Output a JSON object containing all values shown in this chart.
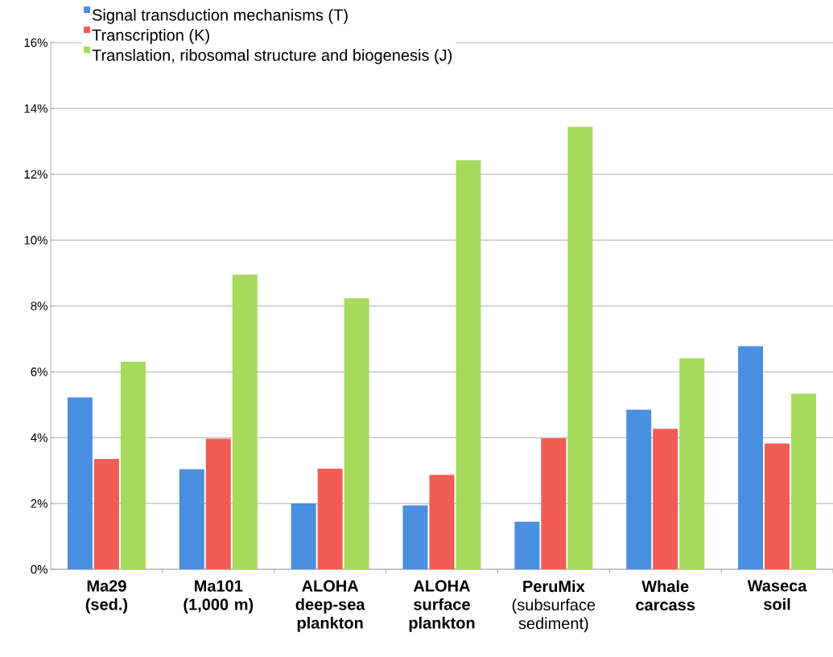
{
  "chart_data": {
    "type": "bar",
    "categories": [
      "**Ma29 (sed.)**",
      "**Ma101 (1,000 m)**",
      "**ALOHA deep-sea plankton**",
      "**ALOHA surface plankton**",
      "**PeruMix** (subsurface sediment)",
      "**Whale carcass**",
      "**Waseca soil**"
    ],
    "series": [
      {
        "name": "Signal transduction mechanisms (T)",
        "color": "#4a8fe0",
        "values": [
          5.22,
          3.04,
          2.0,
          1.94,
          1.45,
          4.85,
          6.78
        ]
      },
      {
        "name": "Transcription (K)",
        "color": "#f45b55",
        "values": [
          3.35,
          3.97,
          3.06,
          2.87,
          3.98,
          4.27,
          3.82
        ]
      },
      {
        "name": "Translation, ribosomal structure and biogenesis (J)",
        "color": "#a6da5c",
        "values": [
          6.31,
          8.95,
          8.23,
          12.43,
          13.44,
          6.41,
          5.34
        ]
      }
    ],
    "ylim": [
      0,
      16
    ],
    "yticks": [
      {
        "value": 0,
        "label": "0%"
      },
      {
        "value": 2,
        "label": "2%"
      },
      {
        "value": 4,
        "label": "4%"
      },
      {
        "value": 6,
        "label": "6%"
      },
      {
        "value": 8,
        "label": "8%"
      },
      {
        "value": 10,
        "label": "10%"
      },
      {
        "value": 12,
        "label": "12%"
      },
      {
        "value": 14,
        "label": "14%"
      },
      {
        "value": 16,
        "label": "16%"
      }
    ],
    "grid": "y",
    "legend": "top left"
  }
}
